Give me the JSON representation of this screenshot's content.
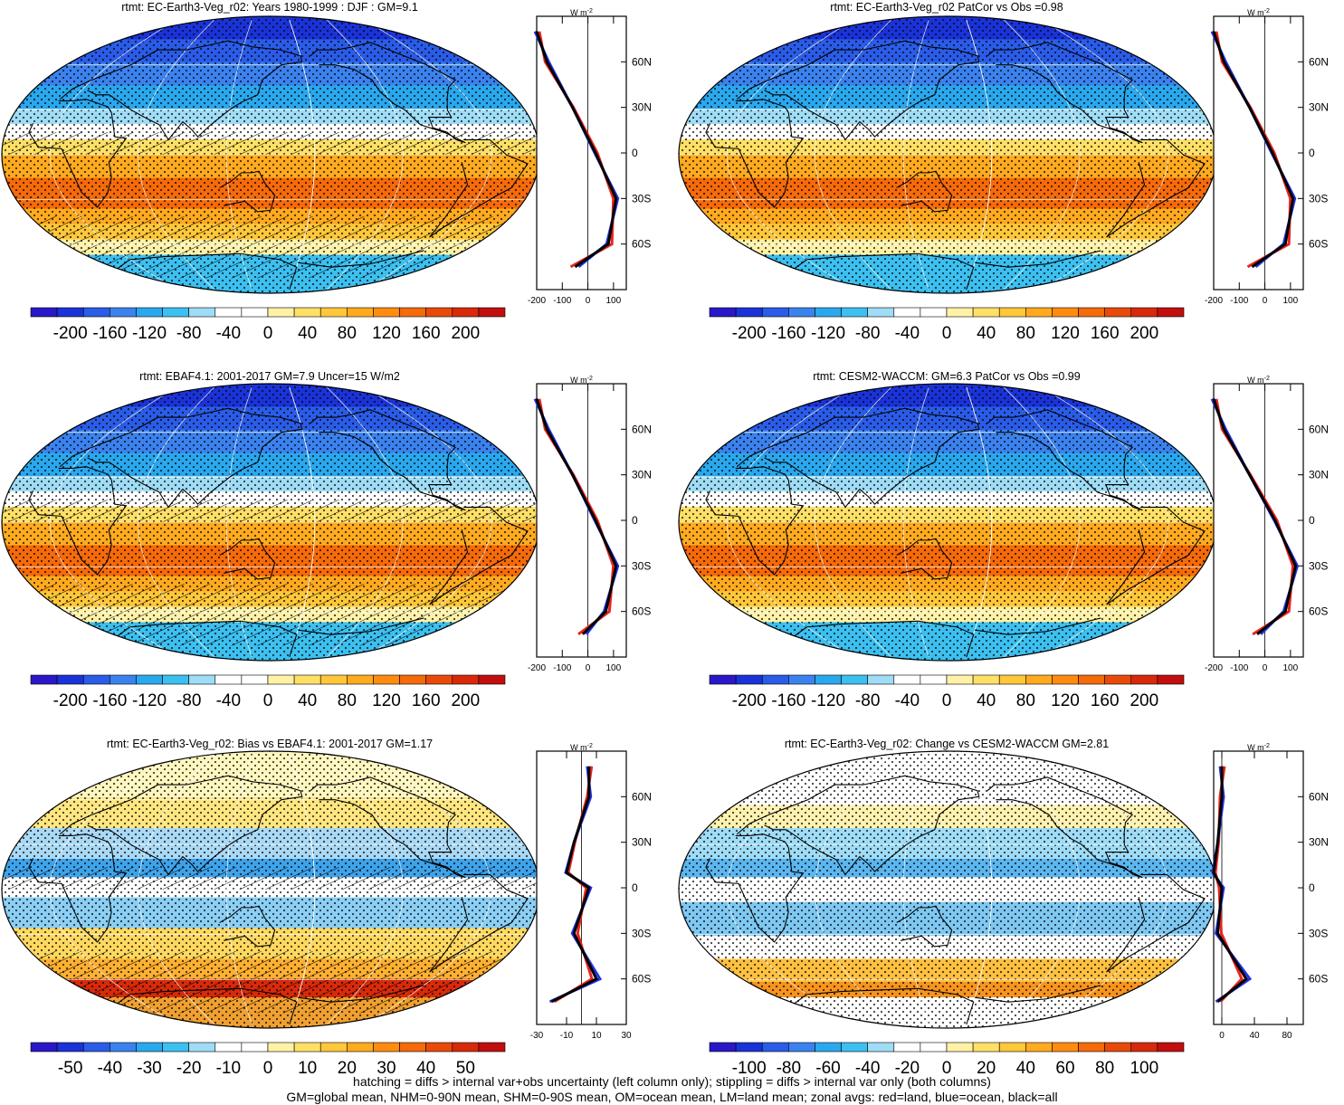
{
  "panels": [
    {
      "title": "rtmt: EC-Earth3-Veg_r02: Years 1980-1999 : DJF : GM=9.1",
      "hatch": true,
      "mode": "abs",
      "profile_ticks": [
        "-200",
        "-100",
        "0",
        "100"
      ],
      "colorbar_labels": [
        "-200",
        "-160",
        "-120",
        "-80",
        "-40",
        "0",
        "40",
        "80",
        "120",
        "160",
        "200"
      ]
    },
    {
      "title": "rtmt: EC-Earth3-Veg_r02 PatCor vs Obs =0.98",
      "hatch": false,
      "mode": "abs",
      "profile_ticks": [
        "-200",
        "-100",
        "0",
        "100"
      ],
      "colorbar_labels": [
        "-200",
        "-160",
        "-120",
        "-80",
        "-40",
        "0",
        "40",
        "80",
        "120",
        "160",
        "200"
      ]
    },
    {
      "title": "rtmt: EBAF4.1: 2001-2017 GM=7.9 Uncer=15 W/m2",
      "hatch": true,
      "mode": "abs",
      "profile_ticks": [
        "-200",
        "-100",
        "0",
        "100"
      ],
      "colorbar_labels": [
        "-200",
        "-160",
        "-120",
        "-80",
        "-40",
        "0",
        "40",
        "80",
        "120",
        "160",
        "200"
      ]
    },
    {
      "title": "rtmt: CESM2-WACCM: GM=6.3 PatCor vs Obs =0.99",
      "hatch": false,
      "mode": "abs",
      "profile_ticks": [
        "-200",
        "-100",
        "0",
        "100"
      ],
      "colorbar_labels": [
        "-200",
        "-160",
        "-120",
        "-80",
        "-40",
        "0",
        "40",
        "80",
        "120",
        "160",
        "200"
      ]
    },
    {
      "title": "rtmt: EC-Earth3-Veg_r02: Bias vs EBAF4.1: 2001-2017 GM=1.17",
      "hatch": true,
      "mode": "bias",
      "profile_ticks": [
        "-30",
        "-10",
        "10",
        "30"
      ],
      "colorbar_labels": [
        "-50",
        "-40",
        "-30",
        "-20",
        "-10",
        "0",
        "10",
        "20",
        "30",
        "40",
        "50"
      ]
    },
    {
      "title": "rtmt: EC-Earth3-Veg_r02: Change vs CESM2-WACCM GM=2.81",
      "hatch": false,
      "mode": "change",
      "profile_ticks": [
        "0",
        "40",
        "80"
      ],
      "colorbar_labels": [
        "-100",
        "-80",
        "-60",
        "-40",
        "-20",
        "0",
        "20",
        "40",
        "60",
        "80",
        "100"
      ]
    }
  ],
  "profile_unit": "W m",
  "profile_unit_exp": "-2",
  "lat_labels": [
    "60N",
    "30N",
    "0",
    "30S",
    "60S"
  ],
  "colors": {
    "abs": [
      "#2a18c8",
      "#1a33d8",
      "#2b5ce8",
      "#3b82ee",
      "#2aa8ee",
      "#3cc0f0",
      "#9fdcf6",
      "#ffffff",
      "#ffffff",
      "#fff2a6",
      "#ffe066",
      "#ffc73a",
      "#ffaa1f",
      "#ff8c10",
      "#f56a0a",
      "#e84a0a",
      "#d82a0a",
      "#c20e0e"
    ],
    "land": "#e8251e",
    "ocean": "#2233e6",
    "all": "#000000"
  },
  "footer": [
    "hatching = diffs > internal var+obs uncertainty (left column only); stippling = diffs > internal var only (both columns)",
    "GM=global mean, NHM=0-90N mean, SHM=0-90S mean, OM=ocean mean, LM=land mean; zonal avgs: red=land, blue=ocean, black=all"
  ],
  "chart_data": [
    {
      "type": "heatmap",
      "title": "rtmt: EC-Earth3-Veg_r02: Years 1980-1999 : DJF : GM=9.1",
      "colorbar": [
        -200,
        200
      ],
      "zonal_profile": {
        "lat": [
          80,
          60,
          30,
          0,
          -30,
          -60,
          -75
        ],
        "all": [
          -200,
          -160,
          -60,
          30,
          110,
          80,
          -50
        ],
        "xlim": [
          -200,
          150
        ]
      }
    },
    {
      "type": "heatmap",
      "title": "rtmt: EC-Earth3-Veg_r02 PatCor vs Obs =0.98",
      "colorbar": [
        -200,
        200
      ],
      "zonal_profile": {
        "lat": [
          80,
          60,
          30,
          0,
          -30,
          -60,
          -75
        ],
        "all": [
          -200,
          -160,
          -60,
          30,
          110,
          80,
          -50
        ],
        "xlim": [
          -200,
          150
        ]
      }
    },
    {
      "type": "heatmap",
      "title": "rtmt: EBAF4.1: 2001-2017 GM=7.9 Uncer=15 W/m2",
      "colorbar": [
        -200,
        200
      ],
      "zonal_profile": {
        "lat": [
          80,
          60,
          30,
          0,
          -30,
          -60,
          -75
        ],
        "all": [
          -200,
          -160,
          -60,
          30,
          110,
          70,
          -20
        ],
        "xlim": [
          -200,
          150
        ]
      }
    },
    {
      "type": "heatmap",
      "title": "rtmt: CESM2-WACCM: GM=6.3 PatCor vs Obs =0.99",
      "colorbar": [
        -200,
        200
      ],
      "zonal_profile": {
        "lat": [
          80,
          60,
          30,
          0,
          -30,
          -60,
          -75
        ],
        "all": [
          -200,
          -160,
          -60,
          40,
          120,
          80,
          -30
        ],
        "xlim": [
          -200,
          150
        ]
      }
    },
    {
      "type": "heatmap",
      "title": "rtmt: EC-Earth3-Veg_r02: Bias vs EBAF4.1: 2001-2017 GM=1.17",
      "colorbar": [
        -50,
        50
      ],
      "zonal_profile": {
        "lat": [
          80,
          60,
          30,
          10,
          0,
          -30,
          -60,
          -75
        ],
        "all": [
          5,
          5,
          -5,
          -10,
          5,
          -5,
          10,
          -20
        ],
        "xlim": [
          -30,
          30
        ]
      }
    },
    {
      "type": "heatmap",
      "title": "rtmt: EC-Earth3-Veg_r02: Change vs CESM2-WACCM GM=2.81",
      "colorbar": [
        -100,
        100
      ],
      "zonal_profile": {
        "lat": [
          80,
          60,
          30,
          10,
          0,
          -30,
          -60,
          -75
        ],
        "all": [
          0,
          0,
          -5,
          -10,
          0,
          -5,
          30,
          -5
        ],
        "xlim": [
          -10,
          100
        ]
      }
    }
  ]
}
